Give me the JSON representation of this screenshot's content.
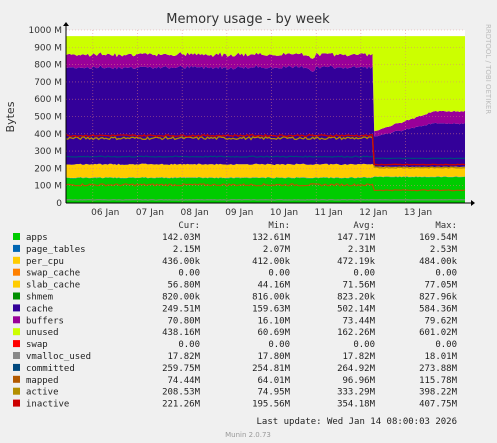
{
  "chart_data": {
    "type": "area",
    "title": "Memory usage - by week",
    "ylabel": "Bytes",
    "side_label": "RRDTOOL / TOBI OETIKER",
    "footer": "Munin 2.0.73",
    "last_update": "Last update: Wed Jan 14 08:00:03 2026",
    "ylim": [
      0,
      1000
    ],
    "yticks": [
      "0",
      "100 M",
      "200 M",
      "300 M",
      "400 M",
      "500 M",
      "600 M",
      "700 M",
      "800 M",
      "900 M",
      "1000 M"
    ],
    "xticks": [
      "06 Jan",
      "07 Jan",
      "08 Jan",
      "09 Jan",
      "10 Jan",
      "11 Jan",
      "12 Jan",
      "13 Jan"
    ],
    "x_range_days": [
      5.4,
      14.33
    ],
    "break_day": 12.3,
    "legend_headers": [
      "Cur:",
      "Min:",
      "Avg:",
      "Max:"
    ],
    "colors": {
      "apps": "#00cc00",
      "page_tables": "#0066b3",
      "per_cpu": "#ffcc00",
      "swap_cache": "#ff8000",
      "slab_cache": "#ffcc00",
      "shmem": "#008f00",
      "cache": "#330099",
      "buffers": "#990099",
      "unused": "#ccff00",
      "swap": "#ff0000",
      "vmalloc_used": "#888888",
      "committed": "#00487d",
      "mapped": "#b35a00",
      "active": "#b38f00",
      "inactive": "#cc0000"
    },
    "series": [
      {
        "name": "apps",
        "cur": "142.03M",
        "min": "132.61M",
        "avg": "147.71M",
        "max": "169.54M"
      },
      {
        "name": "page_tables",
        "cur": "2.15M",
        "min": "2.07M",
        "avg": "2.31M",
        "max": "2.53M"
      },
      {
        "name": "per_cpu",
        "cur": "436.00k",
        "min": "412.00k",
        "avg": "472.19k",
        "max": "484.00k"
      },
      {
        "name": "swap_cache",
        "cur": "0.00",
        "min": "0.00",
        "avg": "0.00",
        "max": "0.00"
      },
      {
        "name": "slab_cache",
        "cur": "56.80M",
        "min": "44.16M",
        "avg": "71.56M",
        "max": "77.05M"
      },
      {
        "name": "shmem",
        "cur": "820.00k",
        "min": "816.00k",
        "avg": "823.20k",
        "max": "827.96k"
      },
      {
        "name": "cache",
        "cur": "249.51M",
        "min": "159.63M",
        "avg": "502.14M",
        "max": "584.36M"
      },
      {
        "name": "buffers",
        "cur": "70.80M",
        "min": "16.10M",
        "avg": "73.44M",
        "max": "79.62M"
      },
      {
        "name": "unused",
        "cur": "438.16M",
        "min": "60.69M",
        "avg": "162.26M",
        "max": "601.02M"
      },
      {
        "name": "swap",
        "cur": "0.00",
        "min": "0.00",
        "avg": "0.00",
        "max": "0.00"
      },
      {
        "name": "vmalloc_used",
        "cur": "17.82M",
        "min": "17.80M",
        "avg": "17.82M",
        "max": "18.01M"
      },
      {
        "name": "committed",
        "cur": "259.75M",
        "min": "254.81M",
        "avg": "264.92M",
        "max": "273.88M"
      },
      {
        "name": "mapped",
        "cur": "74.44M",
        "min": "64.01M",
        "avg": "96.96M",
        "max": "115.78M"
      },
      {
        "name": "active",
        "cur": "208.53M",
        "min": "74.95M",
        "avg": "333.29M",
        "max": "398.22M"
      },
      {
        "name": "inactive",
        "cur": "221.26M",
        "min": "195.56M",
        "avg": "354.18M",
        "max": "407.75M"
      }
    ],
    "stack_before": {
      "apps": 145,
      "slab": 77,
      "cache": 560,
      "buffers": 75,
      "total": 965
    },
    "stack_after": {
      "apps": 150,
      "slab": 57,
      "cache": 250,
      "buffers": 71,
      "total": 965
    },
    "lines_before": {
      "committed": 268,
      "mapped": 105,
      "active": 375,
      "inactive": 390,
      "vmalloc_used": 18
    },
    "lines_after": {
      "committed": 258,
      "mapped": 74,
      "active": 205,
      "inactive": 222,
      "vmalloc_used": 18
    }
  }
}
